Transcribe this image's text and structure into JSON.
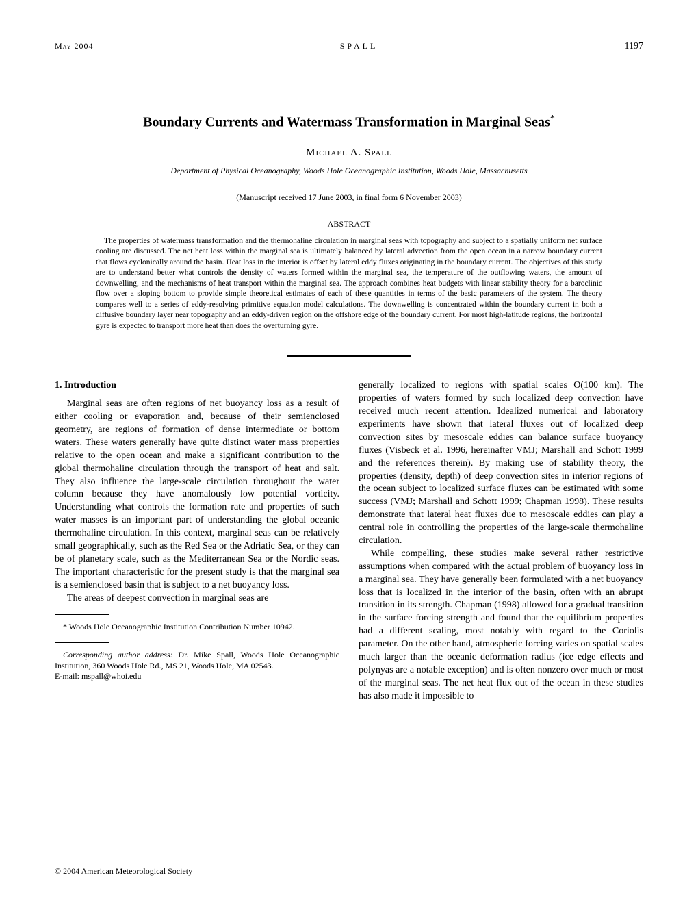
{
  "header": {
    "date": "May 2004",
    "authorHeader": "SPALL",
    "page": "1197"
  },
  "title": "Boundary Currents and Watermass Transformation in Marginal Seas",
  "titleAsterisk": "*",
  "author": "Michael A. Spall",
  "affiliation": "Department of Physical Oceanography, Woods Hole Oceanographic Institution, Woods Hole, Massachusetts",
  "manuscriptDate": "(Manuscript received 17 June 2003, in final form 6 November 2003)",
  "abstractHeading": "ABSTRACT",
  "abstractText": "The properties of watermass transformation and the thermohaline circulation in marginal seas with topography and subject to a spatially uniform net surface cooling are discussed. The net heat loss within the marginal sea is ultimately balanced by lateral advection from the open ocean in a narrow boundary current that flows cyclonically around the basin. Heat loss in the interior is offset by lateral eddy fluxes originating in the boundary current. The objectives of this study are to understand better what controls the density of waters formed within the marginal sea, the temperature of the outflowing waters, the amount of downwelling, and the mechanisms of heat transport within the marginal sea. The approach combines heat budgets with linear stability theory for a baroclinic flow over a sloping bottom to provide simple theoretical estimates of each of these quantities in terms of the basic parameters of the system. The theory compares well to a series of eddy-resolving primitive equation model calculations. The downwelling is concentrated within the boundary current in both a diffusive boundary layer near topography and an eddy-driven region on the offshore edge of the boundary current. For most high-latitude regions, the horizontal gyre is expected to transport more heat than does the overturning gyre.",
  "sectionHeading": "1. Introduction",
  "leftCol": {
    "para1": "Marginal seas are often regions of net buoyancy loss as a result of either cooling or evaporation and, because of their semienclosed geometry, are regions of formation of dense intermediate or bottom waters. These waters generally have quite distinct water mass properties relative to the open ocean and make a significant contribution to the global thermohaline circulation through the transport of heat and salt. They also influence the large-scale circulation throughout the water column because they have anomalously low potential vorticity. Understanding what controls the formation rate and properties of such water masses is an important part of understanding the global oceanic thermohaline circulation. In this context, marginal seas can be relatively small geographically, such as the Red Sea or the Adriatic Sea, or they can be of planetary scale, such as the Mediterranean Sea or the Nordic seas. The important characteristic for the present study is that the marginal sea is a semienclosed basin that is subject to a net buoyancy loss.",
    "para2": "The areas of deepest convection in marginal seas are"
  },
  "rightCol": {
    "para1": "generally localized to regions with spatial scales O(100 km). The properties of waters formed by such localized deep convection have received much recent attention. Idealized numerical and laboratory experiments have shown that lateral fluxes out of localized deep convection sites by mesoscale eddies can balance surface buoyancy fluxes (Visbeck et al. 1996, hereinafter VMJ; Marshall and Schott 1999 and the references therein). By making use of stability theory, the properties (density, depth) of deep convection sites in interior regions of the ocean subject to localized surface fluxes can be estimated with some success (VMJ; Marshall and Schott 1999; Chapman 1998). These results demonstrate that lateral heat fluxes due to mesoscale eddies can play a central role in controlling the properties of the large-scale thermohaline circulation.",
    "para2": "While compelling, these studies make several rather restrictive assumptions when compared with the actual problem of buoyancy loss in a marginal sea. They have generally been formulated with a net buoyancy loss that is localized in the interior of the basin, often with an abrupt transition in its strength. Chapman (1998) allowed for a gradual transition in the surface forcing strength and found that the equilibrium properties had a different scaling, most notably with regard to the Coriolis parameter. On the other hand, atmospheric forcing varies on spatial scales much larger than the oceanic deformation radius (ice edge effects and polynyas are a notable exception) and is often nonzero over much or most of the marginal seas. The net heat flux out of the ocean in these studies has also made it impossible to"
  },
  "footnote1": "* Woods Hole Oceanographic Institution Contribution Number 10942.",
  "footnote2Label": "Corresponding author address:",
  "footnote2Text": " Dr. Mike Spall, Woods Hole Oceanographic Institution, 360 Woods Hole Rd., MS 21, Woods Hole, MA 02543.",
  "footnote3": "E-mail: mspall@whoi.edu",
  "copyright": "© 2004 American Meteorological Society"
}
